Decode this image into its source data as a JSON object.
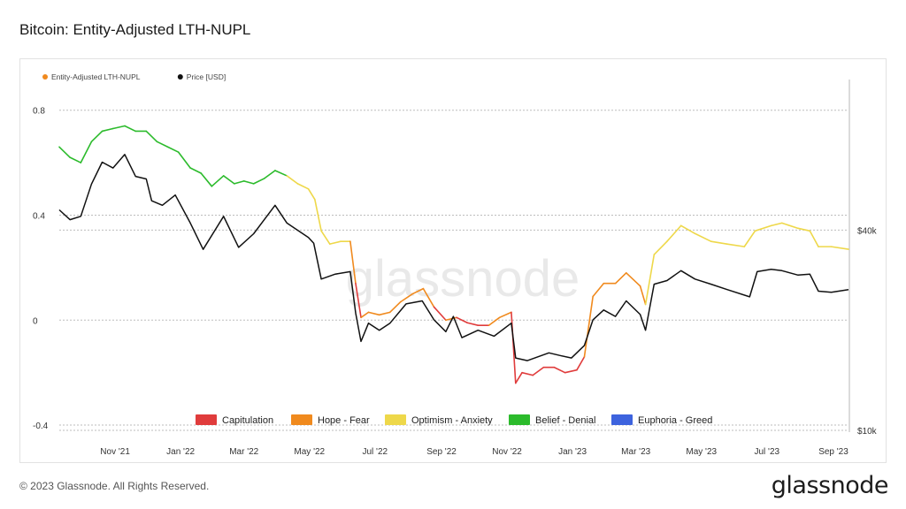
{
  "page": {
    "title": "Bitcoin: Entity-Adjusted LTH-NUPL",
    "footer": "© 2023 Glassnode. All Rights Reserved.",
    "brand": "glassnode",
    "watermark": "glassnode"
  },
  "colors": {
    "capitulation": "#e03c3c",
    "hope_fear": "#f08a1e",
    "optimism_anxiety": "#eed84a",
    "belief_denial": "#2cbb2c",
    "euphoria_greed": "#3d63de",
    "price": "#111111"
  },
  "chart_data": {
    "type": "line",
    "legend_top": [
      {
        "name": "Entity-Adjusted LTH-NUPL",
        "color": "#f08a1e"
      },
      {
        "name": "Price [USD]",
        "color": "#111111"
      }
    ],
    "legend_bottom": [
      {
        "name": "Capitulation",
        "color": "#e03c3c"
      },
      {
        "name": "Hope - Fear",
        "color": "#f08a1e"
      },
      {
        "name": "Optimism - Anxiety",
        "color": "#eed84a"
      },
      {
        "name": "Belief - Denial",
        "color": "#2cbb2c"
      },
      {
        "name": "Euphoria - Greed",
        "color": "#3d63de"
      }
    ],
    "x_ticks": [
      "Nov '21",
      "Jan '22",
      "Mar '22",
      "May '22",
      "Jul '22",
      "Sep '22",
      "Nov '22",
      "Jan '23",
      "Mar '23",
      "May '23",
      "Jul '23",
      "Sep '23"
    ],
    "x_range": [
      "2021-09-10",
      "2023-09-15"
    ],
    "y_left": {
      "ticks": [
        -0.4,
        0,
        0.4,
        0.8
      ],
      "range": [
        -0.42,
        0.9
      ]
    },
    "y_right": {
      "ticks": [
        "$10k",
        "$40k"
      ],
      "scale": "log",
      "tick_values": [
        10000,
        40000
      ]
    },
    "grid": "horizontal-dashed",
    "nupl_series": [
      [
        "2021-09-10",
        0.66,
        "belief_denial"
      ],
      [
        "2021-09-20",
        0.62,
        "belief_denial"
      ],
      [
        "2021-09-30",
        0.6,
        "belief_denial"
      ],
      [
        "2021-10-10",
        0.68,
        "belief_denial"
      ],
      [
        "2021-10-20",
        0.72,
        "belief_denial"
      ],
      [
        "2021-10-30",
        0.73,
        "belief_denial"
      ],
      [
        "2021-11-10",
        0.74,
        "belief_denial"
      ],
      [
        "2021-11-20",
        0.72,
        "belief_denial"
      ],
      [
        "2021-11-30",
        0.72,
        "belief_denial"
      ],
      [
        "2021-12-10",
        0.68,
        "belief_denial"
      ],
      [
        "2021-12-20",
        0.66,
        "belief_denial"
      ],
      [
        "2021-12-30",
        0.64,
        "belief_denial"
      ],
      [
        "2022-01-10",
        0.58,
        "belief_denial"
      ],
      [
        "2022-01-20",
        0.56,
        "belief_denial"
      ],
      [
        "2022-01-30",
        0.51,
        "belief_denial"
      ],
      [
        "2022-02-10",
        0.55,
        "belief_denial"
      ],
      [
        "2022-02-20",
        0.52,
        "belief_denial"
      ],
      [
        "2022-03-01",
        0.53,
        "belief_denial"
      ],
      [
        "2022-03-10",
        0.52,
        "belief_denial"
      ],
      [
        "2022-03-20",
        0.54,
        "belief_denial"
      ],
      [
        "2022-03-30",
        0.57,
        "belief_denial"
      ],
      [
        "2022-04-10",
        0.55,
        "belief_denial"
      ],
      [
        "2022-04-20",
        0.52,
        "optimism_anxiety"
      ],
      [
        "2022-04-30",
        0.5,
        "optimism_anxiety"
      ],
      [
        "2022-05-06",
        0.46,
        "optimism_anxiety"
      ],
      [
        "2022-05-12",
        0.34,
        "optimism_anxiety"
      ],
      [
        "2022-05-20",
        0.29,
        "optimism_anxiety"
      ],
      [
        "2022-05-30",
        0.3,
        "optimism_anxiety"
      ],
      [
        "2022-06-08",
        0.3,
        "optimism_anxiety"
      ],
      [
        "2022-06-13",
        0.14,
        "hope_fear"
      ],
      [
        "2022-06-18",
        0.01,
        "capitulation"
      ],
      [
        "2022-06-25",
        0.03,
        "hope_fear"
      ],
      [
        "2022-07-05",
        0.02,
        "hope_fear"
      ],
      [
        "2022-07-15",
        0.03,
        "hope_fear"
      ],
      [
        "2022-07-25",
        0.07,
        "hope_fear"
      ],
      [
        "2022-08-05",
        0.1,
        "hope_fear"
      ],
      [
        "2022-08-15",
        0.12,
        "hope_fear"
      ],
      [
        "2022-08-25",
        0.05,
        "hope_fear"
      ],
      [
        "2022-09-05",
        0.0,
        "capitulation"
      ],
      [
        "2022-09-15",
        0.01,
        "hope_fear"
      ],
      [
        "2022-09-25",
        -0.01,
        "capitulation"
      ],
      [
        "2022-10-05",
        -0.02,
        "capitulation"
      ],
      [
        "2022-10-15",
        -0.02,
        "capitulation"
      ],
      [
        "2022-10-25",
        0.01,
        "hope_fear"
      ],
      [
        "2022-11-05",
        0.03,
        "hope_fear"
      ],
      [
        "2022-11-09",
        -0.24,
        "capitulation"
      ],
      [
        "2022-11-15",
        -0.2,
        "capitulation"
      ],
      [
        "2022-11-25",
        -0.21,
        "capitulation"
      ],
      [
        "2022-12-05",
        -0.18,
        "capitulation"
      ],
      [
        "2022-12-15",
        -0.18,
        "capitulation"
      ],
      [
        "2022-12-25",
        -0.2,
        "capitulation"
      ],
      [
        "2023-01-05",
        -0.19,
        "capitulation"
      ],
      [
        "2023-01-12",
        -0.14,
        "capitulation"
      ],
      [
        "2023-01-20",
        0.09,
        "hope_fear"
      ],
      [
        "2023-01-30",
        0.14,
        "hope_fear"
      ],
      [
        "2023-02-10",
        0.14,
        "hope_fear"
      ],
      [
        "2023-02-20",
        0.18,
        "hope_fear"
      ],
      [
        "2023-03-05",
        0.13,
        "hope_fear"
      ],
      [
        "2023-03-10",
        0.06,
        "hope_fear"
      ],
      [
        "2023-03-18",
        0.25,
        "optimism_anxiety"
      ],
      [
        "2023-03-30",
        0.3,
        "optimism_anxiety"
      ],
      [
        "2023-04-12",
        0.36,
        "optimism_anxiety"
      ],
      [
        "2023-04-25",
        0.33,
        "optimism_anxiety"
      ],
      [
        "2023-05-10",
        0.3,
        "optimism_anxiety"
      ],
      [
        "2023-05-25",
        0.29,
        "optimism_anxiety"
      ],
      [
        "2023-06-10",
        0.28,
        "optimism_anxiety"
      ],
      [
        "2023-06-20",
        0.34,
        "optimism_anxiety"
      ],
      [
        "2023-07-05",
        0.36,
        "optimism_anxiety"
      ],
      [
        "2023-07-15",
        0.37,
        "optimism_anxiety"
      ],
      [
        "2023-07-30",
        0.35,
        "optimism_anxiety"
      ],
      [
        "2023-08-10",
        0.34,
        "optimism_anxiety"
      ],
      [
        "2023-08-18",
        0.28,
        "optimism_anxiety"
      ],
      [
        "2023-08-30",
        0.28,
        "optimism_anxiety"
      ],
      [
        "2023-09-15",
        0.27,
        "optimism_anxiety"
      ]
    ],
    "price_series": [
      [
        "2021-09-10",
        46000
      ],
      [
        "2021-09-20",
        43000
      ],
      [
        "2021-09-30",
        44000
      ],
      [
        "2021-10-10",
        55000
      ],
      [
        "2021-10-20",
        64000
      ],
      [
        "2021-10-30",
        61500
      ],
      [
        "2021-11-10",
        67500
      ],
      [
        "2021-11-20",
        58000
      ],
      [
        "2021-11-30",
        57000
      ],
      [
        "2021-12-05",
        49000
      ],
      [
        "2021-12-15",
        47500
      ],
      [
        "2021-12-27",
        51000
      ],
      [
        "2022-01-10",
        42000
      ],
      [
        "2022-01-22",
        35000
      ],
      [
        "2022-02-10",
        44000
      ],
      [
        "2022-02-24",
        35500
      ],
      [
        "2022-03-10",
        39000
      ],
      [
        "2022-03-30",
        47500
      ],
      [
        "2022-04-10",
        42000
      ],
      [
        "2022-04-30",
        38000
      ],
      [
        "2022-05-05",
        36500
      ],
      [
        "2022-05-12",
        28500
      ],
      [
        "2022-05-25",
        29500
      ],
      [
        "2022-06-08",
        30000
      ],
      [
        "2022-06-13",
        22500
      ],
      [
        "2022-06-18",
        18500
      ],
      [
        "2022-06-25",
        21000
      ],
      [
        "2022-07-05",
        20000
      ],
      [
        "2022-07-15",
        21000
      ],
      [
        "2022-07-30",
        24000
      ],
      [
        "2022-08-14",
        24500
      ],
      [
        "2022-08-25",
        21500
      ],
      [
        "2022-09-05",
        19800
      ],
      [
        "2022-09-12",
        22000
      ],
      [
        "2022-09-20",
        19000
      ],
      [
        "2022-10-05",
        20000
      ],
      [
        "2022-10-20",
        19200
      ],
      [
        "2022-11-05",
        21000
      ],
      [
        "2022-11-09",
        16500
      ],
      [
        "2022-11-20",
        16200
      ],
      [
        "2022-12-10",
        17100
      ],
      [
        "2022-12-20",
        16800
      ],
      [
        "2022-12-31",
        16500
      ],
      [
        "2023-01-12",
        18000
      ],
      [
        "2023-01-20",
        21500
      ],
      [
        "2023-01-30",
        23000
      ],
      [
        "2023-02-10",
        22000
      ],
      [
        "2023-02-20",
        24500
      ],
      [
        "2023-03-05",
        22300
      ],
      [
        "2023-03-10",
        20000
      ],
      [
        "2023-03-18",
        27500
      ],
      [
        "2023-03-30",
        28200
      ],
      [
        "2023-04-12",
        30200
      ],
      [
        "2023-04-25",
        28500
      ],
      [
        "2023-05-10",
        27500
      ],
      [
        "2023-05-25",
        26500
      ],
      [
        "2023-06-15",
        25200
      ],
      [
        "2023-06-22",
        30000
      ],
      [
        "2023-07-05",
        30500
      ],
      [
        "2023-07-15",
        30200
      ],
      [
        "2023-07-30",
        29300
      ],
      [
        "2023-08-10",
        29500
      ],
      [
        "2023-08-18",
        26200
      ],
      [
        "2023-08-30",
        26000
      ],
      [
        "2023-09-15",
        26500
      ]
    ]
  }
}
